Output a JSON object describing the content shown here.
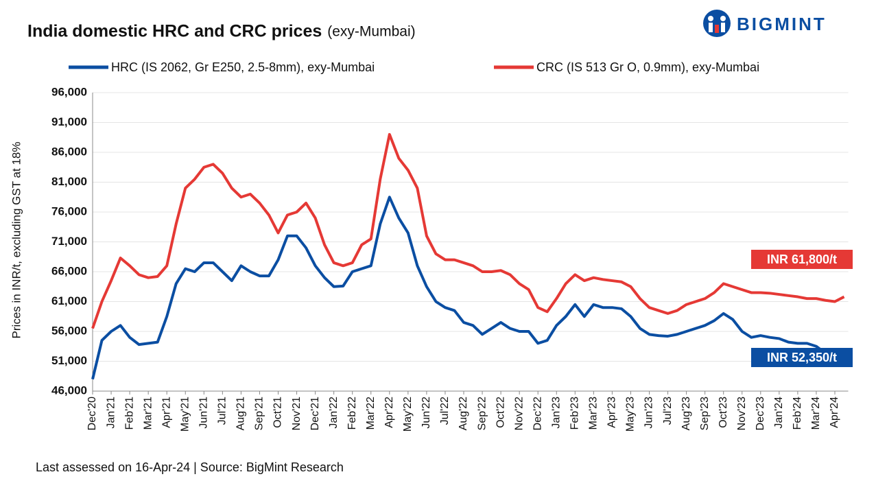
{
  "chart_data": {
    "type": "line",
    "title": "India domestic HRC and CRC prices",
    "subtitle": "(exy-Mumbai)",
    "brand": "BIGMINT",
    "y_label": "Prices in INR/t, excluding GST at 18%",
    "footer": "Last assessed on 16-Apr-24  |  Source: BigMint Research",
    "categories": [
      "Dec'20",
      null,
      "Jan'21",
      null,
      "Feb'21",
      null,
      "Mar'21",
      null,
      "Apr'21",
      null,
      "May'21",
      null,
      "Jun'21",
      null,
      "Jul'21",
      null,
      "Aug'21",
      null,
      "Sep'21",
      null,
      "Oct'21",
      null,
      "Nov'21",
      null,
      "Dec'21",
      null,
      "Jan'22",
      null,
      "Feb'22",
      null,
      "Mar'22",
      null,
      "Apr'22",
      null,
      "May'22",
      null,
      "Jun'22",
      null,
      "Jul'22",
      null,
      "Aug'22",
      null,
      "Sep'22",
      null,
      "Oct'22",
      null,
      "Nov'22",
      null,
      "Dec'22",
      null,
      "Jan'23",
      null,
      "Feb'23",
      null,
      "Mar'23",
      null,
      "Apr'23",
      null,
      "May'23",
      null,
      "Jun'23",
      null,
      "Jul'23",
      null,
      "Aug'23",
      null,
      "Sep'23",
      null,
      "Oct'23",
      null,
      "Nov'23",
      null,
      "Dec'23",
      null,
      "Jan'24",
      null,
      "Feb'24",
      null,
      "Mar'24",
      null,
      "Apr'24",
      null
    ],
    "series": [
      {
        "name": "HRC (IS 2062, Gr E250, 2.5-8mm), exy-Mumbai",
        "color": "#0b4ea2",
        "values": [
          48000,
          54500,
          56000,
          57000,
          55000,
          53800,
          54000,
          54200,
          58500,
          64000,
          66500,
          66000,
          67500,
          67500,
          66000,
          64500,
          67000,
          66000,
          65300,
          65300,
          68000,
          72000,
          72000,
          70000,
          67000,
          65000,
          63500,
          63600,
          66000,
          66500,
          67000,
          74000,
          78500,
          75000,
          72500,
          67000,
          63500,
          61000,
          60000,
          59500,
          57500,
          57000,
          55500,
          56500,
          57500,
          56500,
          56000,
          56000,
          54000,
          54500,
          57000,
          58500,
          60500,
          58500,
          60500,
          60000,
          60000,
          59800,
          58500,
          56500,
          55500,
          55300,
          55200,
          55500,
          56000,
          56500,
          57000,
          57800,
          59000,
          58000,
          56000,
          55000,
          55300,
          55000,
          54800,
          54200,
          54000,
          54000,
          53500,
          52350,
          null,
          null
        ]
      },
      {
        "name": "CRC (IS 513 Gr O, 0.9mm), exy-Mumbai",
        "color": "#e53935",
        "values": [
          56500,
          61000,
          64500,
          68300,
          67000,
          65500,
          65000,
          65200,
          67000,
          74000,
          80000,
          81500,
          83500,
          84000,
          82500,
          80000,
          78500,
          79000,
          77500,
          75500,
          72500,
          75500,
          76000,
          77500,
          75000,
          70500,
          67500,
          67000,
          67500,
          70500,
          71500,
          81500,
          89000,
          85000,
          83000,
          80000,
          72000,
          69000,
          68000,
          68000,
          67500,
          67000,
          66000,
          66000,
          66200,
          65500,
          64000,
          63000,
          60000,
          59300,
          61500,
          64000,
          65500,
          64500,
          65000,
          64700,
          64500,
          64300,
          63500,
          61500,
          60000,
          59500,
          59000,
          59500,
          60500,
          61000,
          61500,
          62500,
          64000,
          63500,
          63000,
          62500,
          62500,
          62400,
          62200,
          62000,
          61800,
          61500,
          61500,
          61200,
          61000,
          61800
        ]
      }
    ],
    "annotations": [
      {
        "text": "INR 61,800/t",
        "color": "#e53935"
      },
      {
        "text": "INR 52,350/t",
        "color": "#0b4ea2"
      }
    ],
    "ylim": [
      46000,
      96000
    ],
    "yticks": [
      {
        "value": 46000,
        "label": "46,000"
      },
      {
        "value": 51000,
        "label": "51,000"
      },
      {
        "value": 56000,
        "label": "56,000"
      },
      {
        "value": 61000,
        "label": "61,000"
      },
      {
        "value": 66000,
        "label": "66,000"
      },
      {
        "value": 71000,
        "label": "71,000"
      },
      {
        "value": 76000,
        "label": "76,000"
      },
      {
        "value": 81000,
        "label": "81,000"
      },
      {
        "value": 86000,
        "label": "86,000"
      },
      {
        "value": 91000,
        "label": "91,000"
      },
      {
        "value": 96000,
        "label": "96,000"
      }
    ],
    "grid": true
  }
}
